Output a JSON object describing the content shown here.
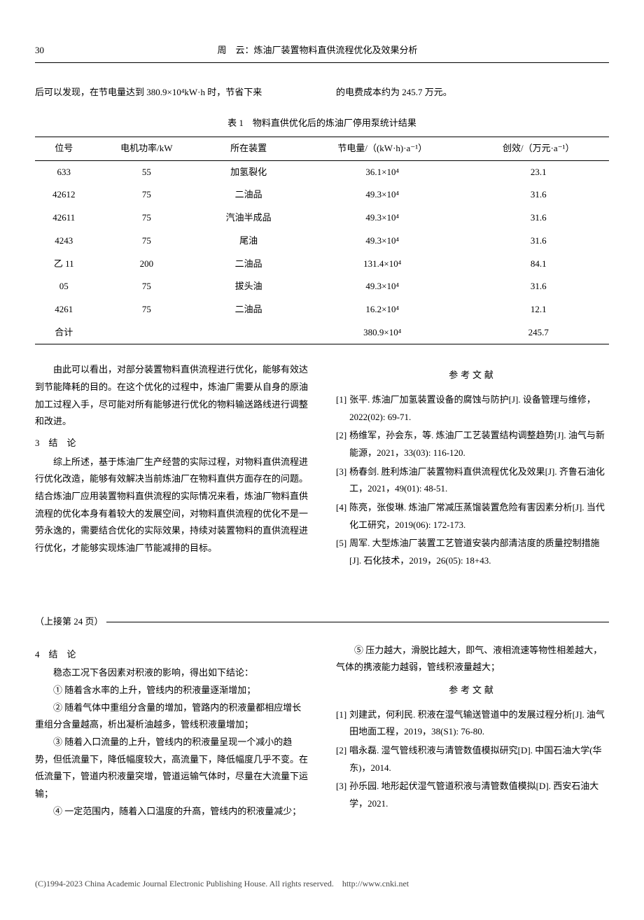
{
  "header": {
    "page_number": "30",
    "running_title": "周　云：炼油厂装置物料直供流程优化及效果分析"
  },
  "intro": {
    "left": "后可以发现，在节电量达到 380.9×10⁴kW·h 时，节省下来",
    "right": "的电费成本约为 245.7 万元。"
  },
  "table1": {
    "caption": "表 1　物料直供优化后的炼油厂停用泵统计结果",
    "columns": [
      "位号",
      "电机功率/kW",
      "所在装置",
      "节电量/（(kW·h)·a⁻¹）",
      "创效/（万元·a⁻¹）"
    ],
    "rows": [
      [
        "633",
        "55",
        "加氢裂化",
        "36.1×10⁴",
        "23.1"
      ],
      [
        "42612",
        "75",
        "二油品",
        "49.3×10⁴",
        "31.6"
      ],
      [
        "42611",
        "75",
        "汽油半成品",
        "49.3×10⁴",
        "31.6"
      ],
      [
        "4243",
        "75",
        "尾油",
        "49.3×10⁴",
        "31.6"
      ],
      [
        "乙 11",
        "200",
        "二油品",
        "131.4×10⁴",
        "84.1"
      ],
      [
        "05",
        "75",
        "拔头油",
        "49.3×10⁴",
        "31.6"
      ],
      [
        "4261",
        "75",
        "二油品",
        "16.2×10⁴",
        "12.1"
      ],
      [
        "合计",
        "",
        "",
        "380.9×10⁴",
        "245.7"
      ]
    ]
  },
  "article1": {
    "left_paras": [
      "由此可以看出，对部分装置物料直供流程进行优化，能够有效达到节能降耗的目的。在这个优化的过程中，炼油厂需要从自身的原油加工过程入手，尽可能对所有能够进行优化的物料输送路线进行调整和改进。"
    ],
    "sec3_head_num": "3",
    "sec3_head_text": "结　论",
    "sec3_paras": [
      "综上所述，基于炼油厂生产经营的实际过程，对物料直供流程进行优化改造，能够有效解决当前炼油厂在物料直供方面存在的问题。结合炼油厂应用装置物料直供流程的实际情况来看，炼油厂物料直供流程的优化本身有着较大的发展空间，对物料直供流程的优化不是一劳永逸的，需要结合优化的实际效果，持续对装置物料的直供流程进行优化，才能够实现炼油厂节能减排的目标。"
    ],
    "ref_title": "参考文献",
    "refs": [
      {
        "n": "[1]",
        "t": "张平. 炼油厂加氢装置设备的腐蚀与防护[J]. 设备管理与维修，2022(02): 69-71."
      },
      {
        "n": "[2]",
        "t": "杨维军，孙会东，等. 炼油厂工艺装置结构调整趋势[J]. 油气与新能源，2021，33(03): 116-120."
      },
      {
        "n": "[3]",
        "t": "杨春剑. 胜利炼油厂装置物料直供流程优化及效果[J]. 齐鲁石油化工，2021，49(01): 48-51."
      },
      {
        "n": "[4]",
        "t": "陈亮，张俊琳. 炼油厂常减压蒸馏装置危险有害因素分析[J]. 当代化工研究，2019(06): 172-173."
      },
      {
        "n": "[5]",
        "t": "周军. 大型炼油厂装置工艺管道安装内部清洁度的质量控制措施[J]. 石化技术，2019，26(05): 18+43."
      }
    ]
  },
  "continuation_label": "（上接第 24 页）",
  "article2": {
    "sec4_head_num": "4",
    "sec4_head_text": "结　论",
    "left_paras": [
      "稳态工况下各因素对积液的影响，得出如下结论：",
      "① 随着含水率的上升，管线内的积液量逐渐增加；",
      "② 随着气体中重组分含量的增加，管路内的积液量都相应增长重组分含量越高，析出凝析油越多，管线积液量增加；",
      "③ 随着入口流量的上升，管线内的积液量呈现一个减小的趋势，但低流量下，降低幅度较大，高流量下，降低幅度几乎不变。在低流量下，管道内积液量突增，管道运输气体时，尽量在大流量下运输；",
      "④ 一定范围内，随着入口温度的升高，管线内的积液量减少；"
    ],
    "right_para": "⑤ 压力越大，滑脱比越大，即气、液相流速等物性相差越大，气体的携液能力越弱，管线积液量越大；",
    "ref_title": "参考文献",
    "refs": [
      {
        "n": "[1]",
        "t": "刘建武，何利民. 积液在湿气输送管道中的发展过程分析[J]. 油气田地面工程，2019，38(S1): 76-80."
      },
      {
        "n": "[2]",
        "t": "唱永磊. 湿气管线积液与清管数值模拟研究[D]. 中国石油大学(华东)，2014."
      },
      {
        "n": "[3]",
        "t": "孙乐园. 地形起伏湿气管道积液与清管数值模拟[D]. 西安石油大学，2021."
      }
    ]
  },
  "footer": {
    "copyright": "(C)1994-2023 China Academic Journal Electronic Publishing House. All rights reserved.",
    "url": "http://www.cnki.net"
  }
}
